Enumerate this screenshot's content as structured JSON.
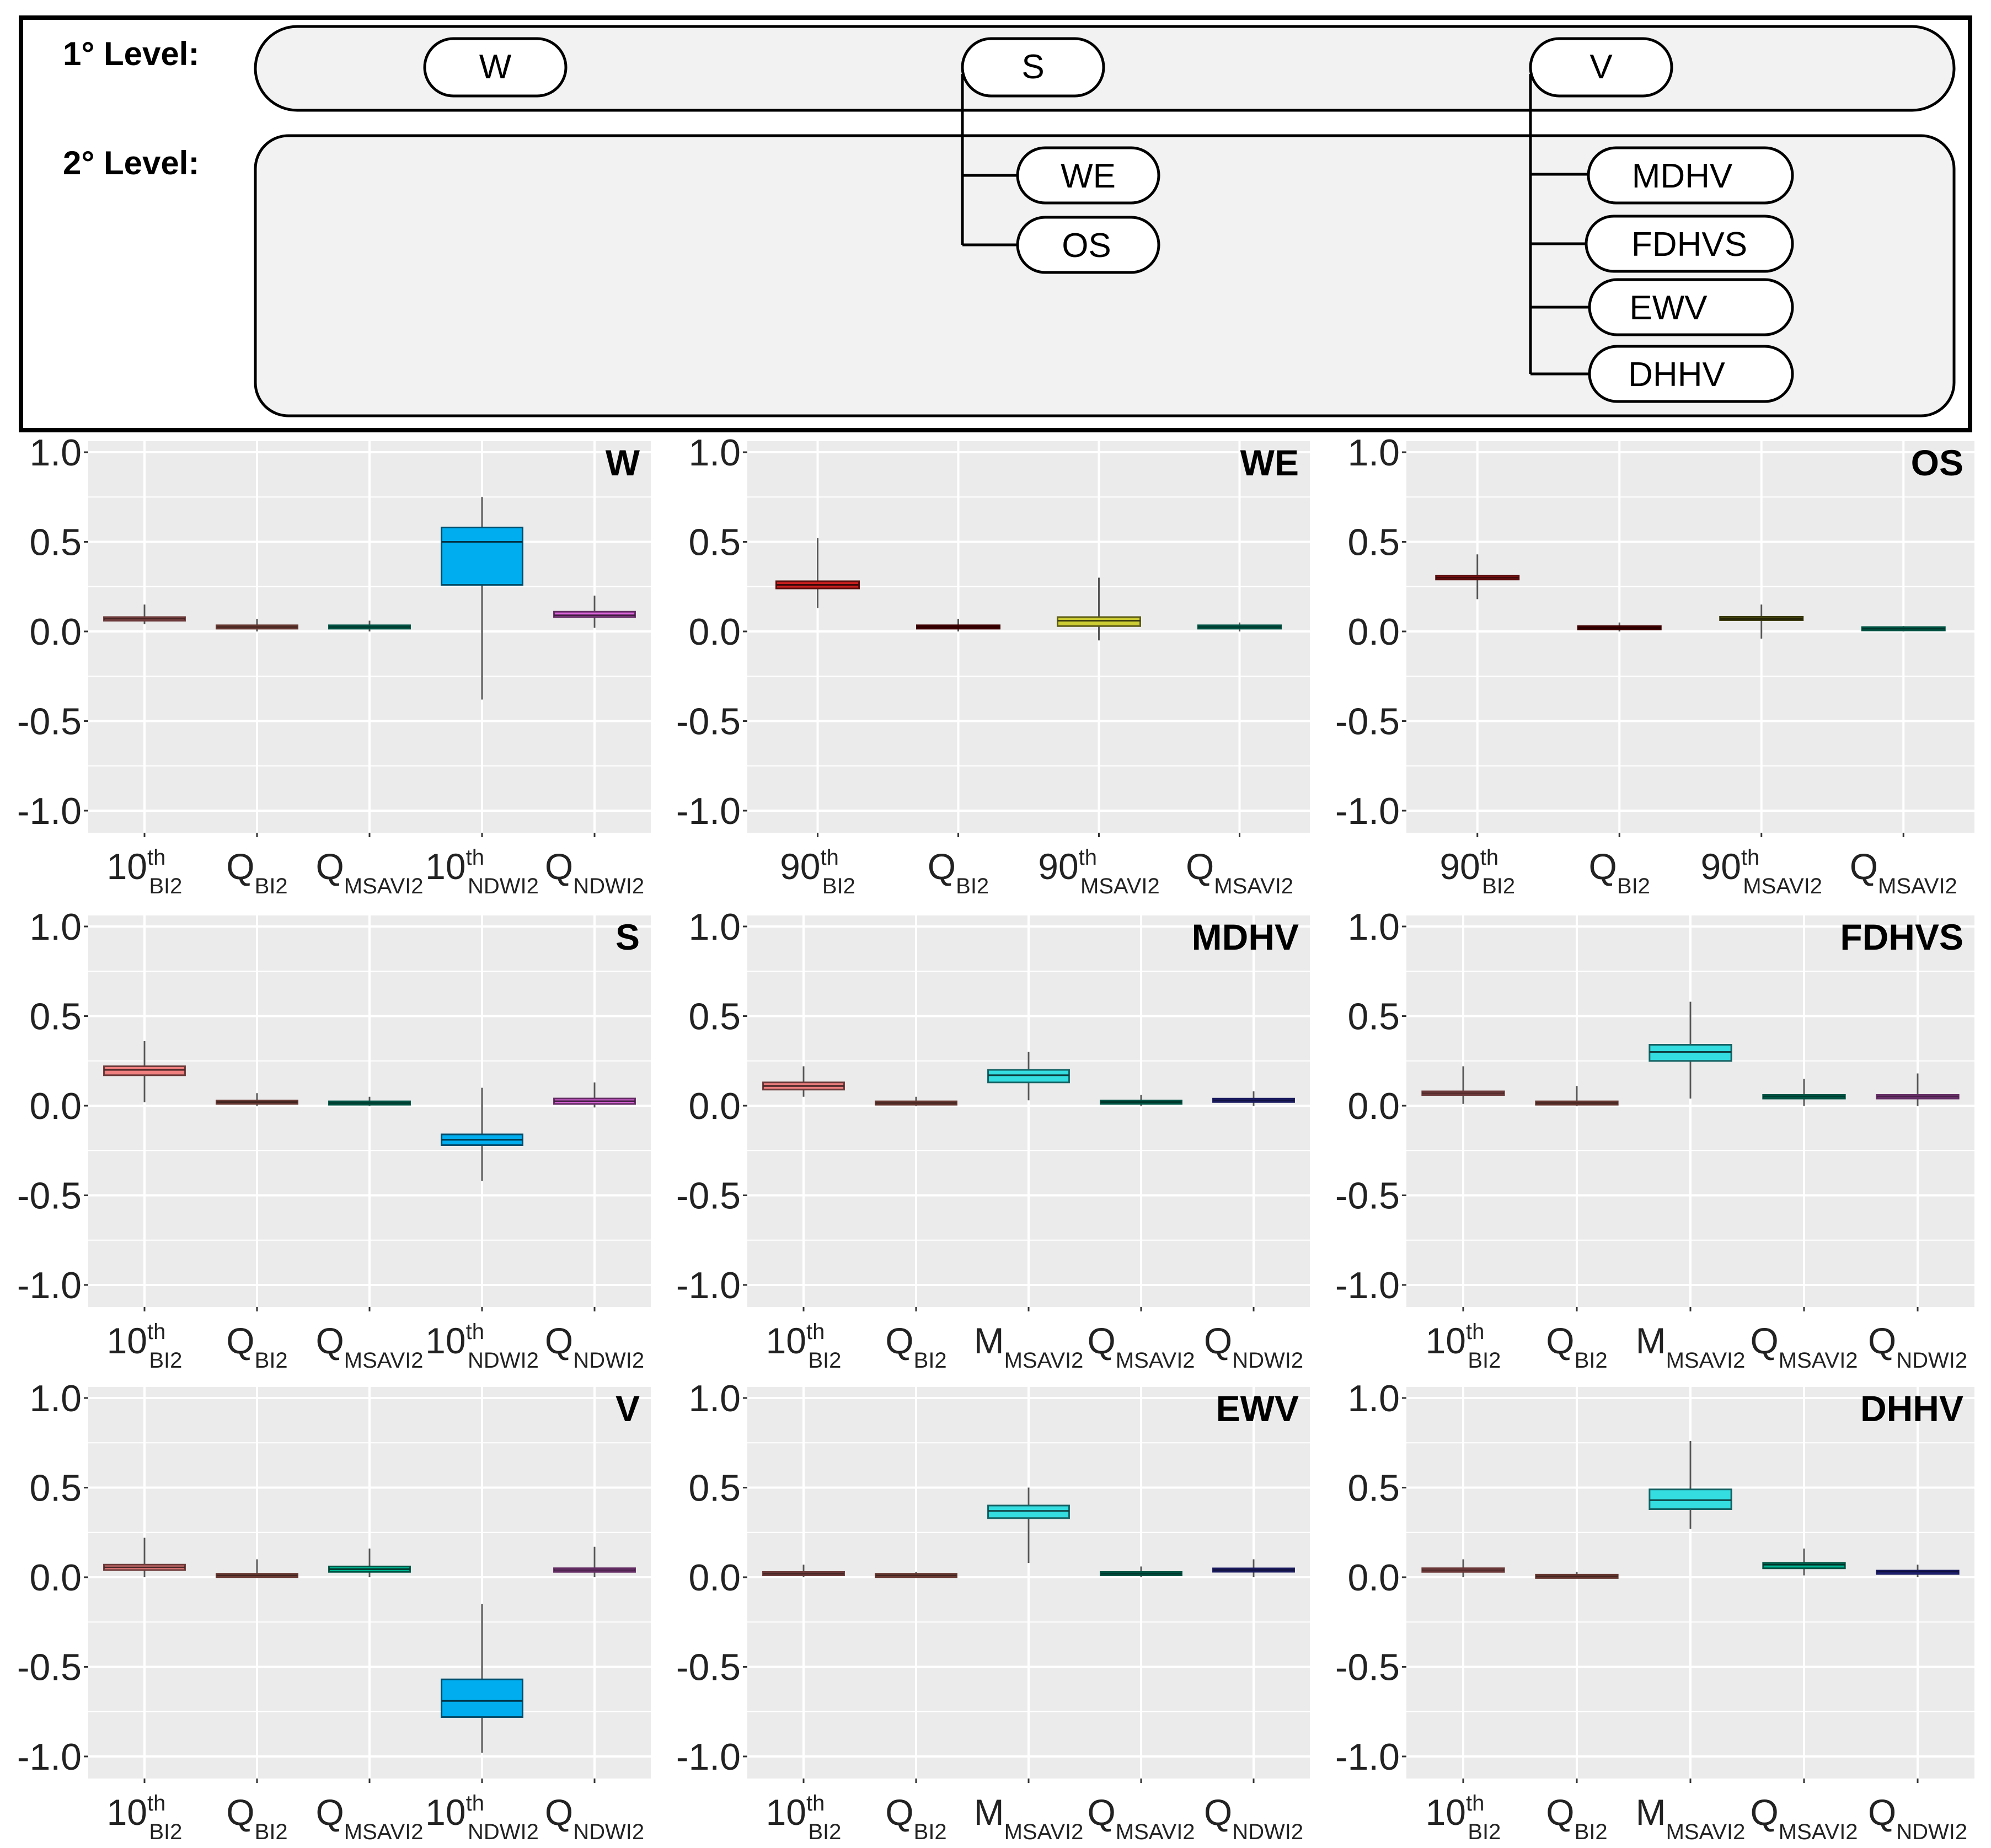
{
  "hierarchy": {
    "level1_label": "1° Level:",
    "level2_label": "2° Level:",
    "level1_nodes": [
      "W",
      "S",
      "V"
    ],
    "s_children": [
      "WE",
      "OS"
    ],
    "v_children": [
      "MDHV",
      "FDHVS",
      "EWV",
      "DHHV"
    ]
  },
  "chart_data": [
    {
      "type": "boxplot",
      "title": "W",
      "ylim": [
        -1.0,
        1.0
      ],
      "yticks": [
        "1.0",
        "0.5",
        "0.0",
        "-0.5",
        "-1.0"
      ],
      "categories": [
        {
          "main": "10",
          "sup": "th",
          "sub": "BI2"
        },
        {
          "main": "Q",
          "sup": "",
          "sub": "BI2"
        },
        {
          "main": "Q",
          "sup": "",
          "sub": "MSAVI2"
        },
        {
          "main": "10",
          "sup": "th",
          "sub": "NDWI2"
        },
        {
          "main": "Q",
          "sup": "",
          "sub": "NDWI2"
        }
      ],
      "boxes": [
        {
          "q1": 0.06,
          "median": 0.07,
          "q3": 0.08,
          "min": 0.04,
          "max": 0.15,
          "color": "#f08080"
        },
        {
          "q1": 0.02,
          "median": 0.025,
          "q3": 0.03,
          "min": 0.0,
          "max": 0.07,
          "color": "#e07b6a"
        },
        {
          "q1": 0.02,
          "median": 0.025,
          "q3": 0.03,
          "min": 0.0,
          "max": 0.06,
          "color": "#00b894"
        },
        {
          "q1": 0.26,
          "median": 0.5,
          "q3": 0.58,
          "min": -0.38,
          "max": 0.75,
          "color": "#00aeef"
        },
        {
          "q1": 0.08,
          "median": 0.09,
          "q3": 0.11,
          "min": 0.02,
          "max": 0.2,
          "color": "#e066e0"
        }
      ]
    },
    {
      "type": "boxplot",
      "title": "WE",
      "ylim": [
        -1.0,
        1.0
      ],
      "yticks": [
        "1.0",
        "0.5",
        "0.0",
        "-0.5",
        "-1.0"
      ],
      "categories": [
        {
          "main": "90",
          "sup": "th",
          "sub": "BI2"
        },
        {
          "main": "Q",
          "sup": "",
          "sub": "BI2"
        },
        {
          "main": "90",
          "sup": "th",
          "sub": "MSAVI2"
        },
        {
          "main": "Q",
          "sup": "",
          "sub": "MSAVI2"
        }
      ],
      "boxes": [
        {
          "q1": 0.24,
          "median": 0.26,
          "q3": 0.28,
          "min": 0.13,
          "max": 0.52,
          "color": "#cc1f1f"
        },
        {
          "q1": 0.02,
          "median": 0.025,
          "q3": 0.03,
          "min": 0.0,
          "max": 0.07,
          "color": "#8b0000"
        },
        {
          "q1": 0.03,
          "median": 0.06,
          "q3": 0.08,
          "min": -0.05,
          "max": 0.3,
          "color": "#cccc33"
        },
        {
          "q1": 0.02,
          "median": 0.025,
          "q3": 0.03,
          "min": 0.0,
          "max": 0.05,
          "color": "#00b894"
        }
      ]
    },
    {
      "type": "boxplot",
      "title": "OS",
      "ylim": [
        -1.0,
        1.0
      ],
      "yticks": [
        "1.0",
        "0.5",
        "0.0",
        "-0.5",
        "-1.0"
      ],
      "categories": [
        {
          "main": "90",
          "sup": "th",
          "sub": "BI2"
        },
        {
          "main": "Q",
          "sup": "",
          "sub": "BI2"
        },
        {
          "main": "90",
          "sup": "th",
          "sub": "MSAVI2"
        },
        {
          "main": "Q",
          "sup": "",
          "sub": "MSAVI2"
        }
      ],
      "boxes": [
        {
          "q1": 0.29,
          "median": 0.3,
          "q3": 0.31,
          "min": 0.18,
          "max": 0.43,
          "color": "#cc1f1f"
        },
        {
          "q1": 0.015,
          "median": 0.02,
          "q3": 0.025,
          "min": 0.0,
          "max": 0.05,
          "color": "#8b0000"
        },
        {
          "q1": 0.065,
          "median": 0.07,
          "q3": 0.08,
          "min": -0.04,
          "max": 0.15,
          "color": "#7a7a1a"
        },
        {
          "q1": 0.01,
          "median": 0.015,
          "q3": 0.02,
          "min": 0.0,
          "max": 0.03,
          "color": "#00b894"
        }
      ]
    },
    {
      "type": "boxplot",
      "title": "S",
      "ylim": [
        -1.0,
        1.0
      ],
      "yticks": [
        "1.0",
        "0.5",
        "0.0",
        "-0.5",
        "-1.0"
      ],
      "categories": [
        {
          "main": "10",
          "sup": "th",
          "sub": "BI2"
        },
        {
          "main": "Q",
          "sup": "",
          "sub": "BI2"
        },
        {
          "main": "Q",
          "sup": "",
          "sub": "MSAVI2"
        },
        {
          "main": "10",
          "sup": "th",
          "sub": "NDWI2"
        },
        {
          "main": "Q",
          "sup": "",
          "sub": "NDWI2"
        }
      ],
      "boxes": [
        {
          "q1": 0.17,
          "median": 0.2,
          "q3": 0.22,
          "min": 0.02,
          "max": 0.36,
          "color": "#f08080"
        },
        {
          "q1": 0.015,
          "median": 0.02,
          "q3": 0.025,
          "min": 0.0,
          "max": 0.07,
          "color": "#e07b6a"
        },
        {
          "q1": 0.01,
          "median": 0.015,
          "q3": 0.02,
          "min": 0.0,
          "max": 0.05,
          "color": "#00b894"
        },
        {
          "q1": -0.22,
          "median": -0.19,
          "q3": -0.16,
          "min": -0.42,
          "max": 0.1,
          "color": "#00aeef"
        },
        {
          "q1": 0.01,
          "median": 0.025,
          "q3": 0.04,
          "min": -0.01,
          "max": 0.13,
          "color": "#e066e0"
        }
      ]
    },
    {
      "type": "boxplot",
      "title": "MDHV",
      "ylim": [
        -1.0,
        1.0
      ],
      "yticks": [
        "1.0",
        "0.5",
        "0.0",
        "-0.5",
        "-1.0"
      ],
      "categories": [
        {
          "main": "10",
          "sup": "th",
          "sub": "BI2"
        },
        {
          "main": "Q",
          "sup": "",
          "sub": "BI2"
        },
        {
          "main": "M",
          "sup": "",
          "sub": "MSAVI2"
        },
        {
          "main": "Q",
          "sup": "",
          "sub": "MSAVI2"
        },
        {
          "main": "Q",
          "sup": "",
          "sub": "NDWI2"
        }
      ],
      "boxes": [
        {
          "q1": 0.09,
          "median": 0.11,
          "q3": 0.13,
          "min": 0.05,
          "max": 0.22,
          "color": "#f08080"
        },
        {
          "q1": 0.01,
          "median": 0.015,
          "q3": 0.02,
          "min": 0.0,
          "max": 0.05,
          "color": "#e07b6a"
        },
        {
          "q1": 0.13,
          "median": 0.17,
          "q3": 0.2,
          "min": 0.03,
          "max": 0.3,
          "color": "#33dde0"
        },
        {
          "q1": 0.015,
          "median": 0.02,
          "q3": 0.025,
          "min": 0.0,
          "max": 0.06,
          "color": "#00b894"
        },
        {
          "q1": 0.025,
          "median": 0.03,
          "q3": 0.035,
          "min": 0.0,
          "max": 0.08,
          "color": "#3b3bd6"
        }
      ]
    },
    {
      "type": "boxplot",
      "title": "FDHVS",
      "ylim": [
        -1.0,
        1.0
      ],
      "yticks": [
        "1.0",
        "0.5",
        "0.0",
        "-0.5",
        "-1.0"
      ],
      "categories": [
        {
          "main": "10",
          "sup": "th",
          "sub": "BI2"
        },
        {
          "main": "Q",
          "sup": "",
          "sub": "BI2"
        },
        {
          "main": "M",
          "sup": "",
          "sub": "MSAVI2"
        },
        {
          "main": "Q",
          "sup": "",
          "sub": "MSAVI2"
        },
        {
          "main": "Q",
          "sup": "",
          "sub": "NDWI2"
        }
      ],
      "boxes": [
        {
          "q1": 0.06,
          "median": 0.07,
          "q3": 0.08,
          "min": 0.01,
          "max": 0.22,
          "color": "#f08080"
        },
        {
          "q1": 0.01,
          "median": 0.015,
          "q3": 0.02,
          "min": 0.0,
          "max": 0.11,
          "color": "#e07b6a"
        },
        {
          "q1": 0.25,
          "median": 0.3,
          "q3": 0.34,
          "min": 0.04,
          "max": 0.58,
          "color": "#33dde0"
        },
        {
          "q1": 0.04,
          "median": 0.05,
          "q3": 0.06,
          "min": 0.0,
          "max": 0.15,
          "color": "#00b894"
        },
        {
          "q1": 0.04,
          "median": 0.05,
          "q3": 0.06,
          "min": 0.0,
          "max": 0.18,
          "color": "#e066e0"
        }
      ]
    },
    {
      "type": "boxplot",
      "title": "V",
      "ylim": [
        -1.0,
        1.0
      ],
      "yticks": [
        "1.0",
        "0.5",
        "0.0",
        "-0.5",
        "-1.0"
      ],
      "categories": [
        {
          "main": "10",
          "sup": "th",
          "sub": "BI2"
        },
        {
          "main": "Q",
          "sup": "",
          "sub": "BI2"
        },
        {
          "main": "Q",
          "sup": "",
          "sub": "MSAVI2"
        },
        {
          "main": "10",
          "sup": "th",
          "sub": "NDWI2"
        },
        {
          "main": "Q",
          "sup": "",
          "sub": "NDWI2"
        }
      ],
      "boxes": [
        {
          "q1": 0.04,
          "median": 0.055,
          "q3": 0.07,
          "min": 0.0,
          "max": 0.22,
          "color": "#f08080"
        },
        {
          "q1": 0.005,
          "median": 0.01,
          "q3": 0.015,
          "min": 0.0,
          "max": 0.1,
          "color": "#e07b6a"
        },
        {
          "q1": 0.03,
          "median": 0.045,
          "q3": 0.06,
          "min": 0.0,
          "max": 0.16,
          "color": "#00b894"
        },
        {
          "q1": -0.78,
          "median": -0.69,
          "q3": -0.57,
          "min": -0.98,
          "max": -0.15,
          "color": "#00aeef"
        },
        {
          "q1": 0.03,
          "median": 0.04,
          "q3": 0.05,
          "min": 0.0,
          "max": 0.17,
          "color": "#e066e0"
        }
      ]
    },
    {
      "type": "boxplot",
      "title": "EWV",
      "ylim": [
        -1.0,
        1.0
      ],
      "yticks": [
        "1.0",
        "0.5",
        "0.0",
        "-0.5",
        "-1.0"
      ],
      "categories": [
        {
          "main": "10",
          "sup": "th",
          "sub": "BI2"
        },
        {
          "main": "Q",
          "sup": "",
          "sub": "BI2"
        },
        {
          "main": "M",
          "sup": "",
          "sub": "MSAVI2"
        },
        {
          "main": "Q",
          "sup": "",
          "sub": "MSAVI2"
        },
        {
          "main": "Q",
          "sup": "",
          "sub": "NDWI2"
        }
      ],
      "boxes": [
        {
          "q1": 0.015,
          "median": 0.02,
          "q3": 0.025,
          "min": 0.0,
          "max": 0.07,
          "color": "#f08080"
        },
        {
          "q1": 0.005,
          "median": 0.01,
          "q3": 0.015,
          "min": 0.0,
          "max": 0.03,
          "color": "#e07b6a"
        },
        {
          "q1": 0.33,
          "median": 0.37,
          "q3": 0.4,
          "min": 0.08,
          "max": 0.5,
          "color": "#33dde0"
        },
        {
          "q1": 0.015,
          "median": 0.02,
          "q3": 0.025,
          "min": 0.0,
          "max": 0.06,
          "color": "#00b894"
        },
        {
          "q1": 0.035,
          "median": 0.04,
          "q3": 0.045,
          "min": 0.0,
          "max": 0.1,
          "color": "#3b3bd6"
        }
      ]
    },
    {
      "type": "boxplot",
      "title": "DHHV",
      "ylim": [
        -1.0,
        1.0
      ],
      "yticks": [
        "1.0",
        "0.5",
        "0.0",
        "-0.5",
        "-1.0"
      ],
      "categories": [
        {
          "main": "10",
          "sup": "th",
          "sub": "BI2"
        },
        {
          "main": "Q",
          "sup": "",
          "sub": "BI2"
        },
        {
          "main": "M",
          "sup": "",
          "sub": "MSAVI2"
        },
        {
          "main": "Q",
          "sup": "",
          "sub": "MSAVI2"
        },
        {
          "main": "Q",
          "sup": "",
          "sub": "NDWI2"
        }
      ],
      "boxes": [
        {
          "q1": 0.03,
          "median": 0.04,
          "q3": 0.05,
          "min": 0.0,
          "max": 0.1,
          "color": "#f08080"
        },
        {
          "q1": 0.0,
          "median": 0.005,
          "q3": 0.01,
          "min": 0.0,
          "max": 0.03,
          "color": "#e07b6a"
        },
        {
          "q1": 0.38,
          "median": 0.43,
          "q3": 0.49,
          "min": 0.27,
          "max": 0.76,
          "color": "#33dde0"
        },
        {
          "q1": 0.05,
          "median": 0.07,
          "q3": 0.08,
          "min": 0.01,
          "max": 0.16,
          "color": "#00b894"
        },
        {
          "q1": 0.02,
          "median": 0.03,
          "q3": 0.035,
          "min": 0.0,
          "max": 0.07,
          "color": "#3b3bd6"
        }
      ]
    }
  ]
}
